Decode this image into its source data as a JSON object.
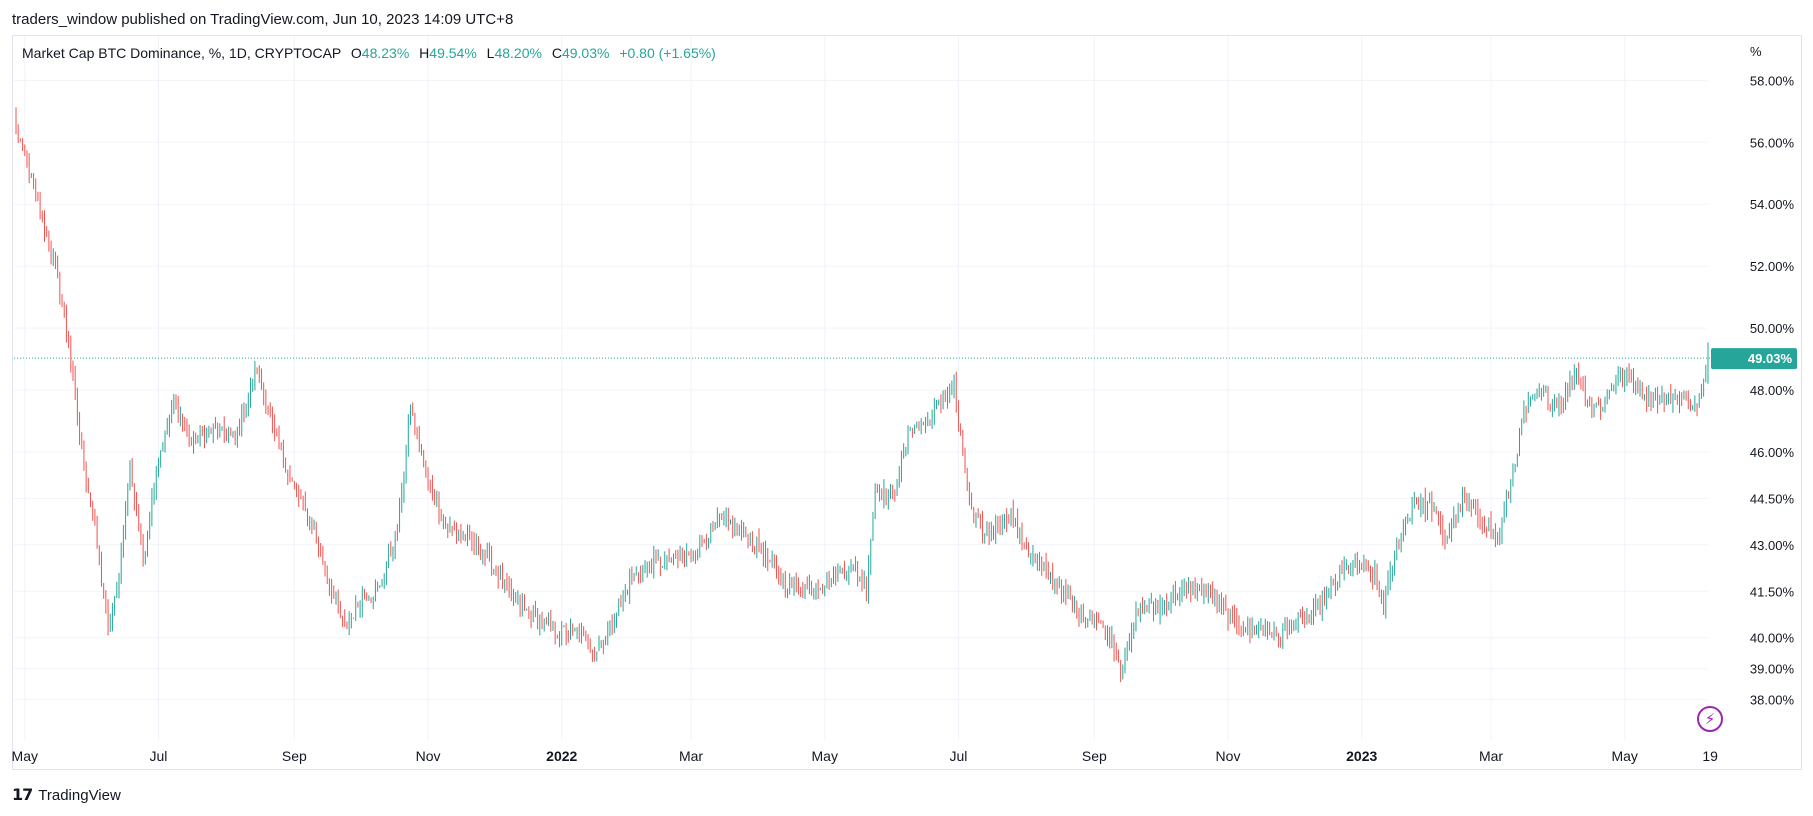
{
  "header": {
    "published_by": "traders_window published on TradingView.com, Jun 10, 2023 14:09 UTC+8"
  },
  "legend": {
    "symbol": "Market Cap BTC Dominance, %, 1D, CRYPTOCAP",
    "open_label": "O",
    "open": "48.23%",
    "high_label": "H",
    "high": "49.54%",
    "low_label": "L",
    "low": "48.20%",
    "close_label": "C",
    "close": "49.03%",
    "change": "+0.80 (+1.65%)"
  },
  "colors": {
    "up": "#26a69a",
    "down": "#ef5350",
    "grid": "#f0f3fa",
    "axis_text": "#131722",
    "price_line": "#26a69a",
    "accent": "#9c27b0"
  },
  "footer": {
    "brand": "TradingView",
    "logo_icon": "tradingview-logo-icon"
  },
  "chart_data": {
    "type": "candlestick",
    "title": "Market Cap BTC Dominance, %, 1D, CRYPTOCAP",
    "ylabel": "%",
    "ylim": [
      37.6,
      58.4
    ],
    "y_ticks": [
      "58.00%",
      "56.00%",
      "54.00%",
      "52.00%",
      "50.00%",
      "48.00%",
      "46.00%",
      "44.50%",
      "43.00%",
      "41.50%",
      "40.00%",
      "39.00%",
      "38.00%"
    ],
    "y_tick_values": [
      58.0,
      56.0,
      54.0,
      52.0,
      50.0,
      48.0,
      46.0,
      44.5,
      43.0,
      41.5,
      40.0,
      39.0,
      38.0
    ],
    "x_labels": [
      "May",
      "Jul",
      "Sep",
      "Nov",
      "2022",
      "Mar",
      "May",
      "Jul",
      "Sep",
      "Nov",
      "2023",
      "Mar",
      "May",
      "19"
    ],
    "x_bold": [
      false,
      false,
      false,
      false,
      true,
      false,
      false,
      false,
      false,
      false,
      true,
      false,
      false,
      false
    ],
    "x_day_index": [
      4,
      65,
      127,
      188,
      249,
      308,
      369,
      430,
      492,
      553,
      614,
      673,
      734,
      773
    ],
    "last_price": 49.03,
    "last_price_label": "49.03%",
    "key_closes": [
      [
        0,
        56.5
      ],
      [
        8,
        54.5
      ],
      [
        18,
        52.0
      ],
      [
        24,
        49.5
      ],
      [
        30,
        46.0
      ],
      [
        36,
        43.5
      ],
      [
        42,
        40.2
      ],
      [
        46,
        41.5
      ],
      [
        52,
        45.5
      ],
      [
        58,
        42.5
      ],
      [
        64,
        45.5
      ],
      [
        72,
        47.6
      ],
      [
        80,
        46.3
      ],
      [
        90,
        46.7
      ],
      [
        100,
        46.4
      ],
      [
        110,
        48.7
      ],
      [
        118,
        46.5
      ],
      [
        126,
        45.0
      ],
      [
        136,
        43.5
      ],
      [
        144,
        41.5
      ],
      [
        150,
        40.3
      ],
      [
        158,
        41.3
      ],
      [
        166,
        41.6
      ],
      [
        174,
        43.5
      ],
      [
        180,
        47.4
      ],
      [
        188,
        45.0
      ],
      [
        196,
        43.6
      ],
      [
        206,
        43.2
      ],
      [
        216,
        42.5
      ],
      [
        226,
        41.3
      ],
      [
        236,
        40.7
      ],
      [
        246,
        40.2
      ],
      [
        256,
        40.2
      ],
      [
        264,
        39.5
      ],
      [
        272,
        40.5
      ],
      [
        280,
        41.8
      ],
      [
        290,
        42.4
      ],
      [
        300,
        42.5
      ],
      [
        310,
        42.7
      ],
      [
        320,
        43.8
      ],
      [
        330,
        43.5
      ],
      [
        340,
        42.8
      ],
      [
        350,
        41.8
      ],
      [
        360,
        41.6
      ],
      [
        370,
        41.8
      ],
      [
        380,
        42.3
      ],
      [
        388,
        41.7
      ],
      [
        392,
        44.8
      ],
      [
        400,
        44.5
      ],
      [
        408,
        46.8
      ],
      [
        416,
        47.0
      ],
      [
        424,
        47.8
      ],
      [
        428,
        48.1
      ],
      [
        430,
        46.9
      ],
      [
        436,
        44.0
      ],
      [
        442,
        43.3
      ],
      [
        448,
        43.7
      ],
      [
        454,
        44.0
      ],
      [
        460,
        43.0
      ],
      [
        466,
        42.4
      ],
      [
        476,
        41.7
      ],
      [
        484,
        40.8
      ],
      [
        492,
        40.6
      ],
      [
        500,
        40.0
      ],
      [
        504,
        39.1
      ],
      [
        508,
        39.8
      ],
      [
        512,
        41.0
      ],
      [
        520,
        40.9
      ],
      [
        528,
        41.3
      ],
      [
        536,
        41.6
      ],
      [
        544,
        41.5
      ],
      [
        550,
        41.0
      ],
      [
        556,
        40.5
      ],
      [
        562,
        40.2
      ],
      [
        570,
        40.3
      ],
      [
        576,
        40.0
      ],
      [
        582,
        40.4
      ],
      [
        590,
        40.6
      ],
      [
        598,
        41.3
      ],
      [
        606,
        42.2
      ],
      [
        612,
        42.3
      ],
      [
        620,
        42.0
      ],
      [
        624,
        41.0
      ],
      [
        630,
        43.0
      ],
      [
        638,
        44.4
      ],
      [
        646,
        44.2
      ],
      [
        652,
        43.1
      ],
      [
        660,
        44.4
      ],
      [
        668,
        43.9
      ],
      [
        672,
        43.6
      ],
      [
        676,
        43.1
      ],
      [
        682,
        45.0
      ],
      [
        688,
        47.2
      ],
      [
        694,
        47.9
      ],
      [
        700,
        47.7
      ],
      [
        706,
        47.6
      ],
      [
        712,
        48.7
      ],
      [
        718,
        47.5
      ],
      [
        724,
        47.5
      ],
      [
        730,
        48.4
      ],
      [
        736,
        48.4
      ],
      [
        744,
        47.8
      ],
      [
        752,
        47.7
      ],
      [
        760,
        47.8
      ],
      [
        766,
        47.4
      ],
      [
        770,
        48.2
      ],
      [
        772,
        49.03
      ]
    ]
  }
}
